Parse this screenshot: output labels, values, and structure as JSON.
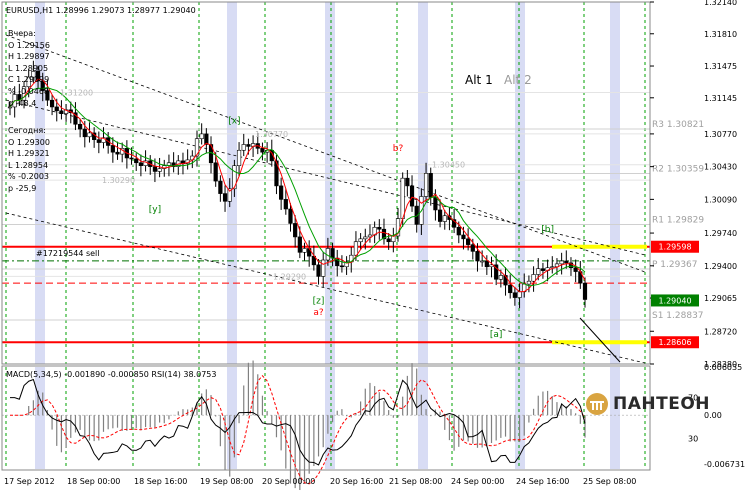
{
  "chart_header": "EURUSD,H1  1.28996 1.29073 1.28977 1.29040",
  "info_yesterday": [
    "Вчера:",
    "O 1.29156",
    "H 1.29897",
    "L 1.28905",
    "C 1.29099",
    "% -0.0468",
    "p -48,4"
  ],
  "info_today": [
    "Сегодня:",
    "O 1.29300",
    "H 1.29321",
    "L 1.28954",
    "% -0.2003",
    "p -25,9"
  ],
  "alt_labels": {
    "alt1": "Alt 1",
    "alt2": "Alt 2"
  },
  "order_label": "#17219544 sell",
  "colors": {
    "background": "#ffffff",
    "grid_vertical": "#00a000",
    "highlight_band": "#d8dcf4",
    "resistance_line": "#ff0000",
    "highlight_zone": "#ffff00",
    "ma_fast": "#ff0000",
    "ma_slow": "#00a000",
    "candles": "#000000",
    "current_price_tag": "#008000",
    "level_tag": "#ff0000",
    "level_label": "#a0a0a0",
    "wave_label_green": "#008000",
    "wave_label_red": "#ff0000"
  },
  "chart_data": {
    "type": "candlestick",
    "symbol": "EURUSD",
    "timeframe": "H1",
    "ohlc_current": {
      "open": 1.28996,
      "high": 1.29073,
      "low": 1.28977,
      "close": 1.2904
    },
    "ylim": [
      1.2838,
      1.3214
    ],
    "y_ticks": [
      "1.32140",
      "1.31810",
      "1.31475",
      "1.31145",
      "1.30770",
      "1.30430",
      "1.30090",
      "1.29740",
      "1.29400",
      "1.29065",
      "1.28720",
      "1.28380"
    ],
    "x_ticks": [
      "17 Sep 2012",
      "18 Sep 00:00",
      "18 Sep 16:00",
      "19 Sep 08:00",
      "20 Sep 00:00",
      "20 Sep 16:00",
      "21 Sep 08:00",
      "24 Sep 00:00",
      "24 Sep 16:00",
      "25 Sep 08:00"
    ],
    "current_price": "1.29040",
    "key_levels": [
      {
        "label": "1.29598",
        "value": 1.29598,
        "kind": "resistance"
      },
      {
        "label": "1.28606",
        "value": 1.28606,
        "kind": "support"
      }
    ],
    "pivot_levels": [
      {
        "label": "R3 1.30821",
        "value": 1.30821
      },
      {
        "label": "R2 1.30359",
        "value": 1.30359
      },
      {
        "label": "R1 1.29829",
        "value": 1.29829
      },
      {
        "label": "P 1.29367",
        "value": 1.29367
      },
      {
        "label": "S1 1.28837",
        "value": 1.28837
      }
    ],
    "dashed_levels": [
      1.29451,
      1.2922
    ],
    "grey_levels": [
      {
        "label": "1.31200",
        "value": 1.312
      },
      {
        "label": "1.30770",
        "value": 1.3077
      },
      {
        "label": "1.30450",
        "value": 1.3045
      },
      {
        "label": "1.30290",
        "value": 1.3029
      },
      {
        "label": "1.29290",
        "value": 1.2929
      }
    ],
    "wave_labels": [
      {
        "text": "[x]",
        "bar": 48,
        "price": 1.3088,
        "color": "green"
      },
      {
        "text": "[y]",
        "bar": 31,
        "price": 1.2996,
        "color": "green"
      },
      {
        "text": "[z]",
        "bar": 66,
        "price": 1.2901,
        "color": "green"
      },
      {
        "text": "a?",
        "bar": 66,
        "price": 1.2889,
        "color": "red"
      },
      {
        "text": "b?",
        "bar": 83,
        "price": 1.3059,
        "color": "red"
      },
      {
        "text": "[a]",
        "bar": 104,
        "price": 1.2866,
        "color": "green"
      },
      {
        "text": "[b]",
        "bar": 115,
        "price": 1.2975,
        "color": "green"
      }
    ],
    "series_price": [
      1.3105,
      1.3118,
      1.3112,
      1.3126,
      1.3136,
      1.3142,
      1.3132,
      1.3122,
      1.3112,
      1.3105,
      1.3101,
      1.3098,
      1.3102,
      1.3099,
      1.3087,
      1.3082,
      1.3074,
      1.3078,
      1.3071,
      1.3068,
      1.3073,
      1.3065,
      1.3058,
      1.3056,
      1.3062,
      1.3052,
      1.3051,
      1.3047,
      1.3044,
      1.3049,
      1.3043,
      1.3038,
      1.3041,
      1.3044,
      1.3047,
      1.3043,
      1.3049,
      1.3046,
      1.305,
      1.3054,
      1.3072,
      1.3077,
      1.3066,
      1.3047,
      1.3028,
      1.3015,
      1.3007,
      1.302,
      1.3044,
      1.306,
      1.3066,
      1.3064,
      1.3067,
      1.3062,
      1.3058,
      1.306,
      1.3049,
      1.3023,
      1.3009,
      1.2999,
      1.2984,
      1.297,
      1.2954,
      1.2958,
      1.295,
      1.2941,
      1.2929,
      1.2946,
      1.2958,
      1.2948,
      1.294,
      1.2939,
      1.2944,
      1.2951,
      1.2965,
      1.2968,
      1.297,
      1.2972,
      1.298,
      1.2978,
      1.2968,
      1.2965,
      1.2971,
      1.2989,
      1.3031,
      1.3023,
      1.3002,
      1.2983,
      1.3012,
      1.3036,
      1.3011,
      1.2998,
      1.2986,
      1.2992,
      1.2988,
      1.298,
      1.2972,
      1.2968,
      1.2962,
      1.2955,
      1.2945,
      1.2945,
      1.2939,
      1.2941,
      1.2926,
      1.293,
      1.292,
      1.2912,
      1.2907,
      1.2913,
      1.2921,
      1.2924,
      1.2931,
      1.2937,
      1.2935,
      1.2938,
      1.2939,
      1.2942,
      1.2945,
      1.2943,
      1.2938,
      1.2934,
      1.2922,
      1.2905
    ],
    "macd": {
      "label": "MACD(5,34,5) -0.001890 -0.000850",
      "ylim": [
        -0.00673,
        0.00603
      ],
      "ticks": [
        "0.006035",
        "0.00",
        "-0.006731"
      ]
    },
    "rsi": {
      "label": "RSI(14) 38.0753",
      "ticks": [
        "70",
        "30"
      ]
    }
  },
  "logo": {
    "text": "ПАНТЕОН",
    "brand_color": "#d9a441"
  }
}
